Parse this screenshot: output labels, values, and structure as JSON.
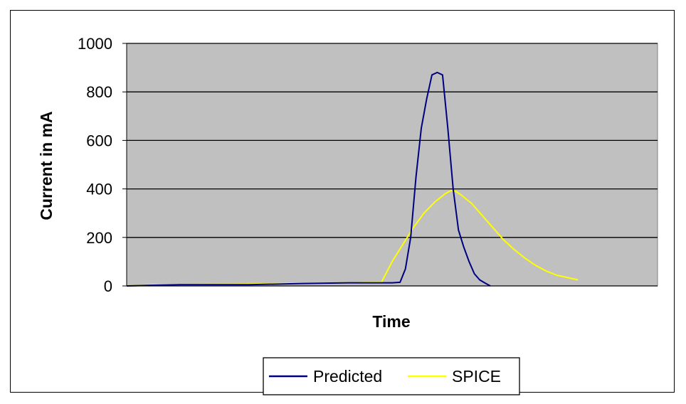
{
  "chart_data": {
    "type": "line",
    "title": "",
    "xlabel": "Time",
    "ylabel": "Current in mA",
    "ylim": [
      0,
      1000
    ],
    "yticks": [
      0,
      200,
      400,
      600,
      800,
      1000
    ],
    "xlim": [
      0,
      100
    ],
    "grid": "horizontal",
    "plot_background": "#c0c0c0",
    "legend_position": "bottom",
    "series": [
      {
        "name": "Predicted",
        "color": "#000080",
        "x": [
          0,
          5,
          10,
          23,
          33,
          42,
          50,
          51.5,
          52.5,
          53.5,
          54.5,
          55.5,
          56.5,
          57.5,
          58.5,
          59.5,
          60.5,
          61.5,
          62.5,
          63.5,
          64.5,
          65.5,
          66.5,
          67.5,
          68.5
        ],
        "values": [
          0,
          3,
          5,
          5,
          10,
          13,
          13,
          15,
          70,
          200,
          450,
          650,
          770,
          870,
          880,
          870,
          650,
          400,
          230,
          160,
          100,
          50,
          25,
          12,
          0
        ]
      },
      {
        "name": "SPICE",
        "color": "#ffff00",
        "x": [
          0,
          5,
          10,
          20,
          30,
          40,
          46.5,
          48,
          50,
          52,
          54,
          56,
          58,
          60,
          61,
          62,
          63,
          65,
          67,
          69,
          71,
          73,
          75,
          77,
          79,
          81,
          83,
          85
        ],
        "values": [
          0,
          5,
          6,
          7,
          10,
          12,
          15,
          15,
          100,
          170,
          240,
          300,
          345,
          380,
          392,
          390,
          375,
          340,
          290,
          240,
          190,
          150,
          115,
          85,
          62,
          44,
          35,
          25
        ]
      }
    ]
  }
}
